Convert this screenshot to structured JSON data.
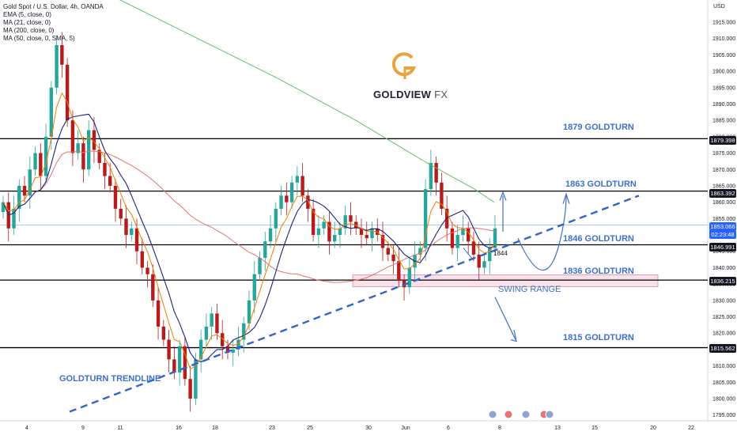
{
  "legend": {
    "title": "Gold Spot / U.S. Dollar, 4h, OANDA",
    "ema5": "EMA (5, close, 0)",
    "ma21": "MA (21, close, 0)",
    "ma200": "MA (200, close, 0)",
    "ma50": "MA (50, close, 0, SMA, 5)"
  },
  "brand": {
    "name": "GOLDVIEW",
    "suffix": "FX",
    "logo_icon": "goldview-g-logo-icon"
  },
  "annotations": {
    "l1879": "1879 GOLDTURN",
    "l1863": "1863 GOLDTURN",
    "l1846": "1846 GOLDTURN",
    "l1836": "1836 GOLDTURN",
    "swing": "SWING RANGE",
    "l1815": "1815 GOLDTURN",
    "trendline": "GOLDTURN TRENDLINE",
    "marker": "1844"
  },
  "price_tags": {
    "t1879": "1879.398",
    "t1863": "1863.392",
    "t1853": "1853.066",
    "t1853_timer": "02:23:48",
    "t1846": "1846.991",
    "t1836": "1836.215",
    "t1815": "1815.562"
  },
  "colors": {
    "bull": "#26a69a",
    "bear": "#b71c1c",
    "ema5": "#f57c00",
    "ma21": "#1a237e",
    "ma50": "#e57373",
    "ma200": "#66bb6a",
    "annotation": "#3e6fc9",
    "swing_zone": "#f3c9d6",
    "current_price": "#2962ff"
  },
  "chart_data": {
    "type": "line",
    "title": "Gold Spot / U.S. Dollar, 4h, OANDA",
    "currency_label": "USD",
    "y_ticks": [
      1915,
      1910,
      1905,
      1900,
      1895,
      1890,
      1885,
      1880,
      1875,
      1870,
      1865,
      1860,
      1855,
      1850,
      1845,
      1840,
      1835,
      1830,
      1825,
      1820,
      1815,
      1810,
      1805,
      1800,
      1795
    ],
    "y_tick_labels": [
      "1915.000",
      "1910.000",
      "1905.000",
      "1900.000",
      "1895.000",
      "1890.000",
      "1885.000",
      "1880.000",
      "1875.000",
      "1870.000",
      "1865.000",
      "1860.000",
      "1855.000",
      "1850.000",
      "1845.000",
      "1840.000",
      "1835.000",
      "1830.000",
      "1825.000",
      "1820.000",
      "1815.000",
      "1810.000",
      "1805.000",
      "1800.000",
      "1795.000"
    ],
    "ylim": [
      1793,
      1920
    ],
    "x_tick_labels": [
      "4",
      "9",
      "11",
      "16",
      "18",
      "23",
      "25",
      "30",
      "Jun",
      "6",
      "8",
      "13",
      "15",
      "20",
      "22"
    ],
    "horizontal_levels": [
      1879.398,
      1863.392,
      1846.991,
      1836.215,
      1815.562
    ],
    "current_price": 1853.066,
    "swing_range": [
      1834.2,
      1837.8
    ],
    "close_series": [
      1860,
      1852,
      1858,
      1865,
      1862,
      1870,
      1875,
      1868,
      1880,
      1895,
      1908,
      1902,
      1885,
      1875,
      1878,
      1870,
      1882,
      1876,
      1872,
      1868,
      1865,
      1858,
      1855,
      1850,
      1852,
      1845,
      1840,
      1838,
      1830,
      1822,
      1818,
      1812,
      1808,
      1816,
      1806,
      1800,
      1812,
      1818,
      1822,
      1826,
      1820,
      1816,
      1814,
      1815,
      1818,
      1823,
      1830,
      1838,
      1843,
      1848,
      1852,
      1858,
      1862,
      1860,
      1866,
      1868,
      1862,
      1858,
      1850,
      1852,
      1854,
      1848,
      1850,
      1852,
      1856,
      1854,
      1852,
      1850,
      1849,
      1852,
      1850,
      1846,
      1844,
      1842,
      1836,
      1834,
      1840,
      1844,
      1846,
      1864,
      1872,
      1866,
      1858,
      1852,
      1846,
      1850,
      1852,
      1848,
      1844,
      1840,
      1842,
      1846,
      1852
    ]
  }
}
